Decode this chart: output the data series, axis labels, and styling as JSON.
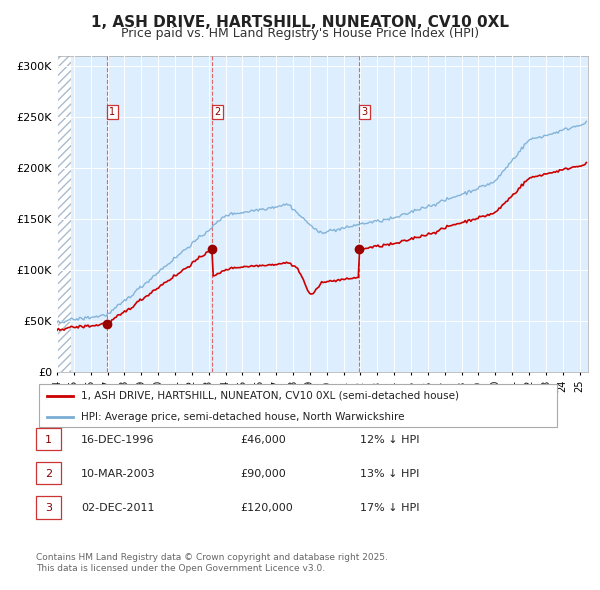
{
  "title": "1, ASH DRIVE, HARTSHILL, NUNEATON, CV10 0XL",
  "subtitle": "Price paid vs. HM Land Registry's House Price Index (HPI)",
  "background_color": "#ddeeff",
  "line_color_red": "#cc0000",
  "line_color_blue": "#7aadd4",
  "ylim": [
    0,
    310000
  ],
  "yticks": [
    0,
    50000,
    100000,
    150000,
    200000,
    250000,
    300000
  ],
  "ytick_labels": [
    "£0",
    "£50K",
    "£100K",
    "£150K",
    "£200K",
    "£250K",
    "£300K"
  ],
  "purchases": [
    {
      "num": 1,
      "date": "16-DEC-1996",
      "price": 46000,
      "hpi_pct": "12% ↓ HPI",
      "x_year": 1996.96
    },
    {
      "num": 2,
      "date": "10-MAR-2003",
      "price": 90000,
      "hpi_pct": "13% ↓ HPI",
      "x_year": 2003.19
    },
    {
      "num": 3,
      "date": "02-DEC-2011",
      "price": 120000,
      "hpi_pct": "17% ↓ HPI",
      "x_year": 2011.92
    }
  ],
  "legend_label_red": "1, ASH DRIVE, HARTSHILL, NUNEATON, CV10 0XL (semi-detached house)",
  "legend_label_blue": "HPI: Average price, semi-detached house, North Warwickshire",
  "footnote": "Contains HM Land Registry data © Crown copyright and database right 2025.\nThis data is licensed under the Open Government Licence v3.0.",
  "xmin": 1994.0,
  "xmax": 2025.5
}
